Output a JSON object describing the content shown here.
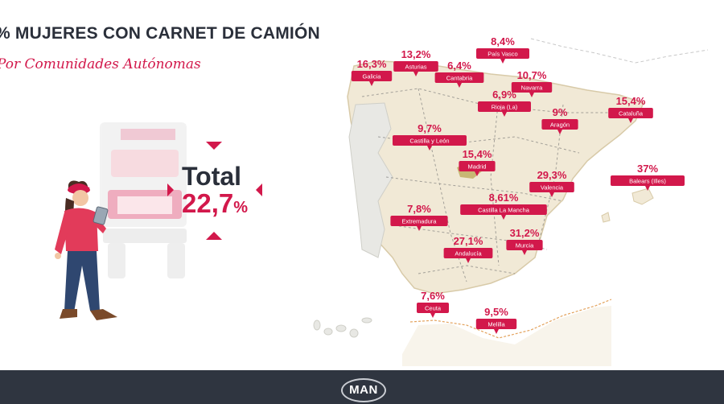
{
  "title": "% MUJERES CON CARNET DE CAMIÓN",
  "subtitle": "Por Comunidades Autónomas",
  "total": {
    "label": "Total",
    "value": "22,7",
    "unit": "%"
  },
  "brand": "MAN",
  "colors": {
    "accent": "#d2184b",
    "dark": "#2a2f3a",
    "footer": "#2f3540"
  },
  "chart_data": {
    "type": "table",
    "title": "% MUJERES CON CARNET DE CAMIÓN",
    "subtitle": "Por Comunidades Autónomas",
    "categories": [
      "Galicia",
      "Asturias",
      "Cantabria",
      "País Vasco",
      "Navarra",
      "Rioja (La)",
      "Cataluña",
      "Aragón",
      "Castilla y León",
      "Madrid",
      "Valencia",
      "Balears (Illes)",
      "Extremadura",
      "Castilla La Mancha",
      "Andalucía",
      "Murcia",
      "Ceuta",
      "Melilla"
    ],
    "labels": [
      "16,3%",
      "13,2%",
      "6,4%",
      "8,4%",
      "10,7%",
      "6,9%",
      "15,4%",
      "9%",
      "9,7%",
      "15,4%",
      "29,3%",
      "37%",
      "7,8%",
      "8,61%",
      "27,1%",
      "31,2%",
      "7,6%",
      "9,5%"
    ],
    "values": [
      16.3,
      13.2,
      6.4,
      8.4,
      10.7,
      6.9,
      15.4,
      9,
      9.7,
      15.4,
      29.3,
      37,
      7.8,
      8.61,
      27.1,
      31.2,
      7.6,
      9.5
    ],
    "total": 22.7
  }
}
